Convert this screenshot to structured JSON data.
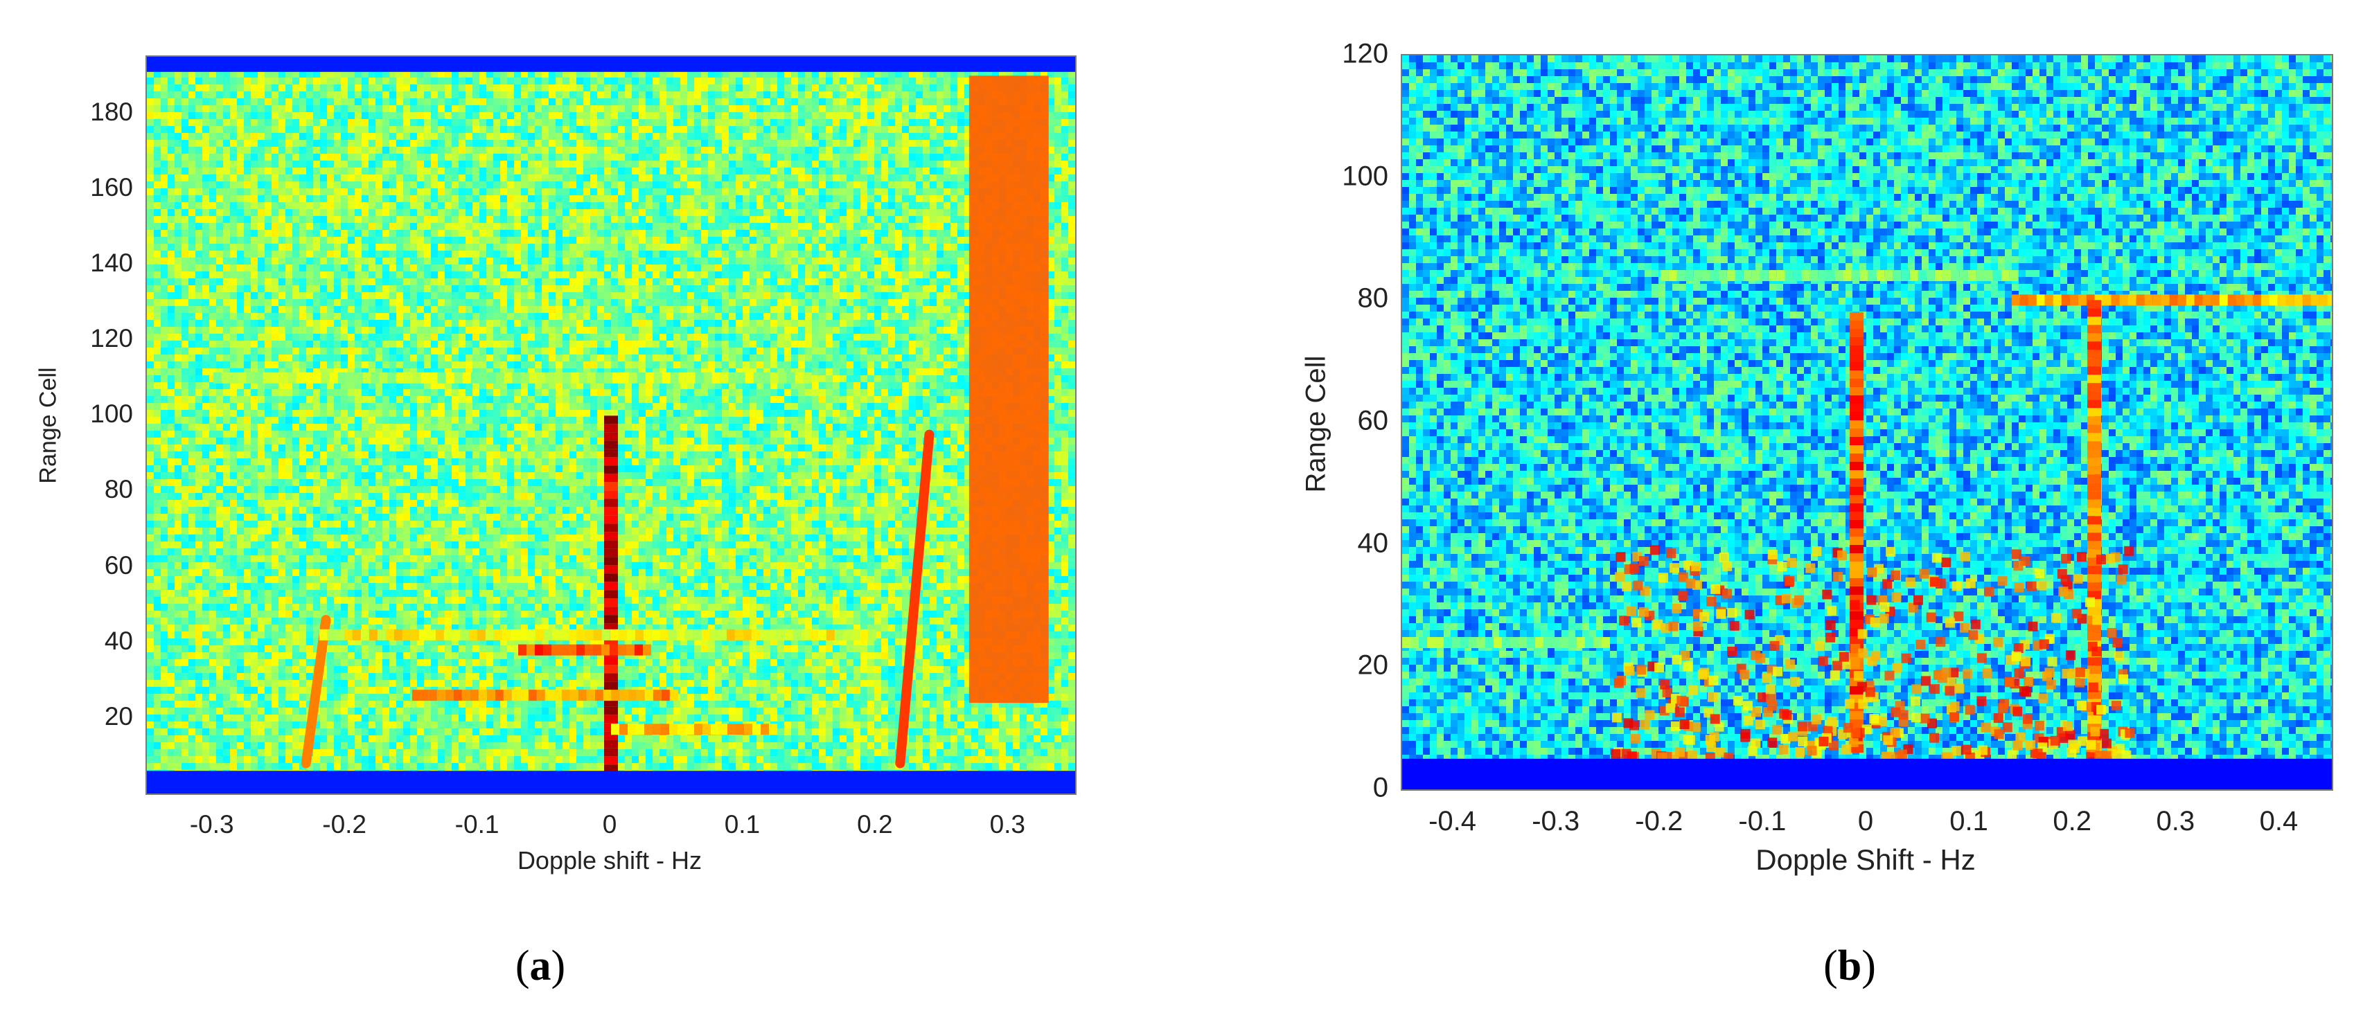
{
  "chart_data": [
    {
      "type": "heatmap",
      "panel_label": "a",
      "xlabel": "Dopple shift - Hz",
      "ylabel": "Range Cell",
      "xlim": [
        -0.35,
        0.35
      ],
      "ylim": [
        0,
        195
      ],
      "x_ticks": [
        -0.3,
        -0.2,
        -0.1,
        0,
        0.1,
        0.2,
        0.3
      ],
      "x_tick_labels": [
        "-0.3",
        "-0.2",
        "-0.1",
        "0",
        "0.1",
        "0.2",
        "0.3"
      ],
      "y_ticks": [
        20,
        40,
        60,
        80,
        100,
        120,
        140,
        160,
        180
      ],
      "y_tick_labels": [
        "20",
        "40",
        "60",
        "80",
        "100",
        "120",
        "140",
        "160",
        "180"
      ],
      "colormap": "jet",
      "colors": {
        "background": "#5fe08a",
        "low": "#1030b0",
        "mid": "#ffe040",
        "high": "#c01010"
      },
      "features": [
        {
          "kind": "vertical_band",
          "x": [
            0.27,
            0.33
          ],
          "y": [
            24,
            190
          ],
          "level": 0.78
        },
        {
          "kind": "slanted_line",
          "from": [
            -0.23,
            8
          ],
          "to": [
            -0.215,
            46
          ],
          "level": 0.75
        },
        {
          "kind": "slanted_line",
          "from": [
            0.218,
            8
          ],
          "to": [
            0.24,
            95
          ],
          "level": 0.82
        },
        {
          "kind": "vertical_line",
          "x": 0,
          "y": [
            0,
            100
          ],
          "level": 0.92
        },
        {
          "kind": "horizontal_line",
          "y": 42,
          "x": [
            -0.22,
            0.2
          ],
          "level": 0.62
        },
        {
          "kind": "horizontal_line",
          "y": 110,
          "x": [
            -0.3,
            0.15
          ],
          "level": 0.55
        },
        {
          "kind": "horizontal_line",
          "y": 26,
          "x": [
            -0.15,
            0.05
          ],
          "level": 0.72
        },
        {
          "kind": "horizontal_line",
          "y": 17,
          "x": [
            0.0,
            0.12
          ],
          "level": 0.68
        },
        {
          "kind": "horizontal_line",
          "y": 38,
          "x": [
            -0.07,
            0.03
          ],
          "level": 0.8
        },
        {
          "kind": "low_edge_band",
          "y": [
            0,
            6
          ],
          "level": 0.05
        },
        {
          "kind": "low_edge_band",
          "y": [
            191,
            195
          ],
          "level": 0.05
        }
      ]
    },
    {
      "type": "heatmap",
      "panel_label": "b",
      "xlabel": "Dopple Shift - Hz",
      "ylabel": "Range Cell",
      "xlim": [
        -0.45,
        0.45
      ],
      "ylim": [
        0,
        120
      ],
      "x_ticks": [
        -0.4,
        -0.3,
        -0.2,
        -0.1,
        0,
        0.1,
        0.2,
        0.3,
        0.4
      ],
      "x_tick_labels": [
        "-0.4",
        "-0.3",
        "-0.2",
        "-0.1",
        "0",
        "0.1",
        "0.2",
        "0.3",
        "0.4"
      ],
      "y_ticks": [
        0,
        20,
        40,
        60,
        80,
        100,
        120
      ],
      "y_tick_labels": [
        "0",
        "20",
        "40",
        "60",
        "80",
        "100",
        "120"
      ],
      "colormap": "jet",
      "colors": {
        "background": "#33c8e0",
        "low": "#1028a0",
        "mid": "#ffe040",
        "high": "#d02010"
      },
      "features": [
        {
          "kind": "horizontal_line",
          "y": 80,
          "x": [
            0.14,
            0.45
          ],
          "level": 0.7
        },
        {
          "kind": "horizontal_line",
          "y": 84,
          "x": [
            -0.2,
            0.14
          ],
          "level": 0.5
        },
        {
          "kind": "vertical_line",
          "x": 0.22,
          "y": [
            6,
            80
          ],
          "level": 0.75
        },
        {
          "kind": "vertical_line",
          "x": -0.01,
          "y": [
            6,
            78
          ],
          "level": 0.8
        },
        {
          "kind": "blob",
          "x": [
            -0.25,
            0.25
          ],
          "y": [
            6,
            40
          ],
          "level": 0.72
        },
        {
          "kind": "horizontal_line",
          "y": 24,
          "x": [
            -0.45,
            -0.25
          ],
          "level": 0.5
        },
        {
          "kind": "low_edge_band",
          "y": [
            0,
            5
          ],
          "level": 0.03
        }
      ]
    }
  ],
  "captions": {
    "a": "a",
    "b": "b"
  }
}
